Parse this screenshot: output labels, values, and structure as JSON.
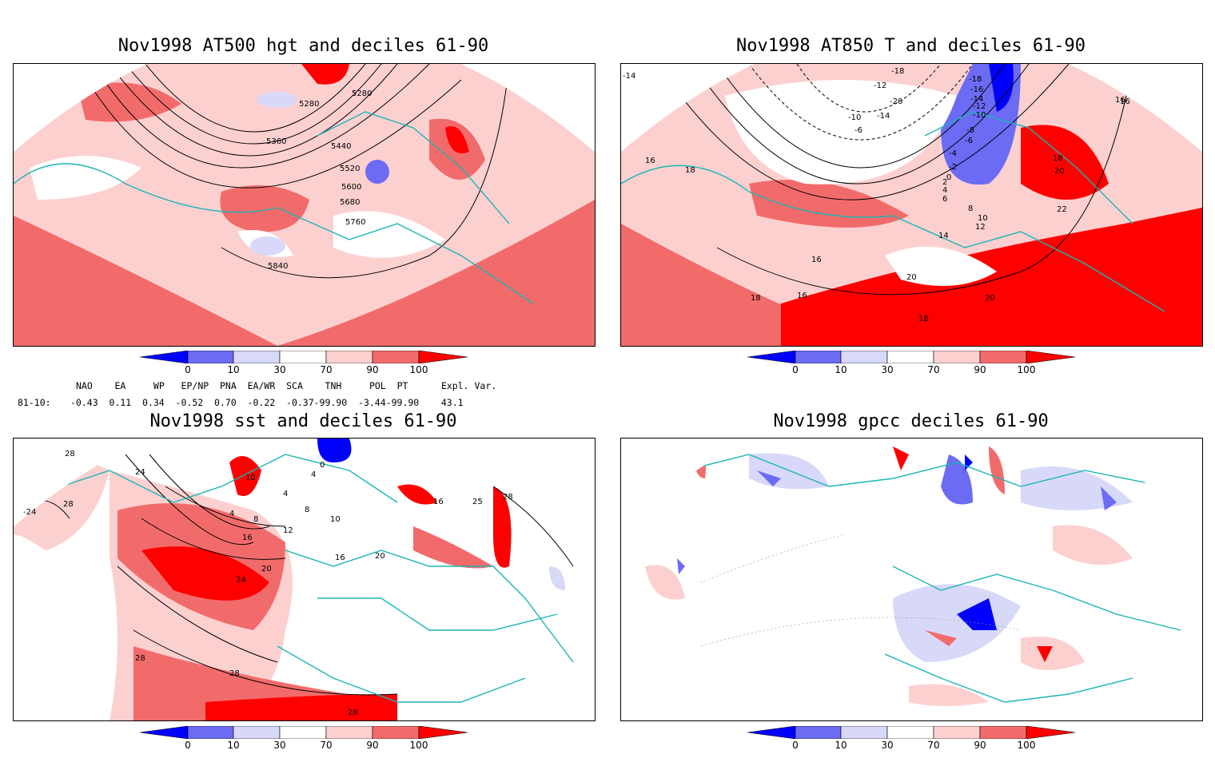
{
  "panels": [
    {
      "title": "Nov1998 AT500 hgt and deciles 61-90",
      "labels": [
        "5280",
        "5280",
        "5360",
        "5440",
        "5520",
        "5600",
        "5680",
        "5760",
        "5840"
      ]
    },
    {
      "title": "Nov1998 AT850 T and deciles 61-90",
      "labels": [
        "-14",
        "-18",
        "-12",
        "-20",
        "-18",
        "-16",
        "-14",
        "-12",
        "-10",
        "-8",
        "-6",
        "-4",
        "-2",
        "0",
        "2",
        "4",
        "6",
        "8",
        "10",
        "12",
        "14",
        "16",
        "16",
        "16",
        "18",
        "18",
        "18",
        "20",
        "20",
        "20",
        "22",
        "16",
        "18",
        "16",
        "-10",
        "-14",
        "-6"
      ]
    },
    {
      "title": "Nov1998 sst and deciles 61-90",
      "labels": [
        "28",
        "24",
        "-24",
        "28",
        "10",
        "4",
        "4",
        "4",
        "8",
        "8",
        "12",
        "16",
        "20",
        "24",
        "28",
        "28",
        "28",
        "16",
        "20",
        "16",
        "25",
        "28",
        "0",
        "10"
      ]
    },
    {
      "title": "Nov1998 gpcc deciles 61-90",
      "labels": []
    }
  ],
  "colorbar": {
    "ticks": [
      "0",
      "10",
      "30",
      "70",
      "90",
      "100"
    ],
    "colors": [
      "#0000ff",
      "#6b6bf4",
      "#d8d8f8",
      "#ffffff",
      "#fdd0d0",
      "#f26b6b",
      "#ff0000"
    ]
  },
  "indices": {
    "header": "NAO    EA     WP   EP/NP  PNA  EA/WR  SCA    TNH     POL  PT      Expl. Var.",
    "row_label": "81-10:",
    "values": "-0.43  0.11  0.34  -0.52  0.70  -0.22  -0.37-99.90  -3.44-99.90    43.1"
  }
}
